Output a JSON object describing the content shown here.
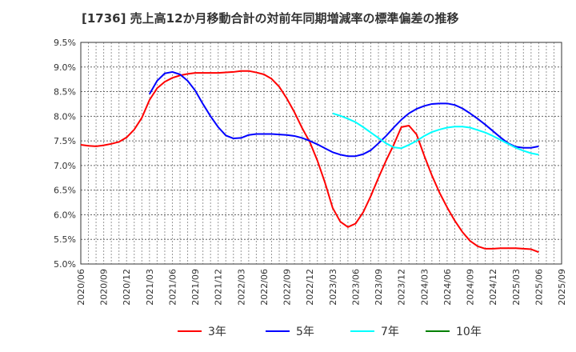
{
  "chart_data": {
    "type": "line",
    "title": "[1736]  売上高12か月移動合計の対前年同期増減率の標準偏差の推移",
    "xlabel": "",
    "ylabel": "",
    "x_start": "2020/06",
    "x_ticks": [
      "2020/06",
      "2020/09",
      "2020/12",
      "2021/03",
      "2021/06",
      "2021/09",
      "2021/12",
      "2022/03",
      "2022/06",
      "2022/09",
      "2022/12",
      "2023/03",
      "2023/06",
      "2023/09",
      "2023/12",
      "2024/03",
      "2024/06",
      "2024/09",
      "2024/12",
      "2025/03",
      "2025/06",
      "2025/09"
    ],
    "y_ticks": [
      "5.0%",
      "5.5%",
      "6.0%",
      "6.5%",
      "7.0%",
      "7.5%",
      "8.0%",
      "8.5%",
      "9.0%",
      "9.5%"
    ],
    "ylim": [
      5.0,
      9.5
    ],
    "grid": true,
    "legend_position": "bottom",
    "series": [
      {
        "name": "3年",
        "color": "#ff0000",
        "start": "2020/06",
        "values": [
          7.42,
          7.4,
          7.39,
          7.41,
          7.44,
          7.48,
          7.57,
          7.73,
          7.97,
          8.33,
          8.57,
          8.7,
          8.78,
          8.83,
          8.86,
          8.88,
          8.88,
          8.88,
          8.88,
          8.89,
          8.9,
          8.92,
          8.92,
          8.89,
          8.85,
          8.76,
          8.6,
          8.36,
          8.08,
          7.76,
          7.48,
          7.1,
          6.65,
          6.14,
          5.86,
          5.75,
          5.82,
          6.05,
          6.38,
          6.75,
          7.1,
          7.42,
          7.78,
          7.81,
          7.63,
          7.2,
          6.8,
          6.45,
          6.15,
          5.88,
          5.65,
          5.47,
          5.36,
          5.31,
          5.31,
          5.32,
          5.32,
          5.32,
          5.31,
          5.3,
          5.24
        ]
      },
      {
        "name": "5年",
        "color": "#0000ff",
        "start": "2021/03",
        "values": [
          8.45,
          8.72,
          8.87,
          8.9,
          8.85,
          8.72,
          8.52,
          8.25,
          8.0,
          7.78,
          7.61,
          7.55,
          7.56,
          7.62,
          7.64,
          7.64,
          7.64,
          7.63,
          7.62,
          7.6,
          7.56,
          7.5,
          7.43,
          7.35,
          7.27,
          7.22,
          7.19,
          7.19,
          7.23,
          7.31,
          7.45,
          7.6,
          7.77,
          7.93,
          8.06,
          8.15,
          8.21,
          8.25,
          8.26,
          8.26,
          8.23,
          8.16,
          8.06,
          7.95,
          7.83,
          7.7,
          7.57,
          7.45,
          7.38,
          7.36,
          7.36,
          7.39
        ]
      },
      {
        "name": "7年",
        "color": "#00ffff",
        "start": "2023/03",
        "values": [
          8.06,
          8.01,
          7.95,
          7.88,
          7.78,
          7.67,
          7.56,
          7.45,
          7.37,
          7.35,
          7.42,
          7.5,
          7.6,
          7.68,
          7.73,
          7.77,
          7.79,
          7.79,
          7.77,
          7.72,
          7.67,
          7.6,
          7.52,
          7.44,
          7.36,
          7.3,
          7.25,
          7.22
        ]
      },
      {
        "name": "10年",
        "color": "#008000",
        "start": "2025/06",
        "values": []
      }
    ]
  }
}
